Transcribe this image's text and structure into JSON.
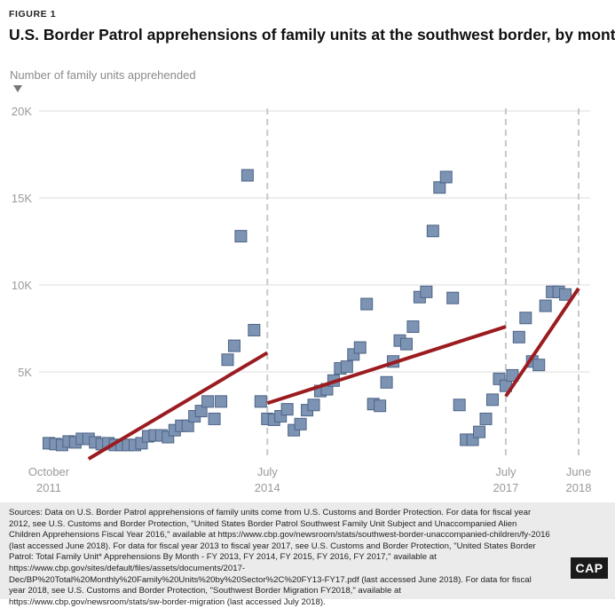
{
  "figure_label": "FIGURE 1",
  "title": "U.S. Border Patrol apprehensions of family units at the southwest border, by month",
  "y_axis_label": "Number of family units apprehended",
  "sources": "Sources: Data on U.S. Border Patrol apprehensions of family units come from U.S. Customs and Border Protection. For data for fiscal year 2012, see U.S. Customs and Border Protection, \"United States Border Patrol Southwest Family Unit Subject and Unaccompanied Alien Children Apprehensions Fiscal Year 2016,\" available at https://www.cbp.gov/newsroom/stats/southwest-border-unaccompanied-children/fy-2016 (last accessed June 2018). For data for fiscal year 2013 to fiscal year 2017, see U.S. Customs and Border Protection, \"United States Border Patrol: Total Family Unit* Apprehensions By Month - FY 2013, FY 2014, FY 2015, FY 2016, FY 2017,\" available at https://www.cbp.gov/sites/default/files/assets/documents/2017-Dec/BP%20Total%20Monthly%20Family%20Units%20by%20Sector%2C%20FY13-FY17.pdf (last accessed June 2018). For data for fiscal year 2018, see U.S. Customs and Border Protection, \"Southwest Border Migration FY2018,\" available at https://www.cbp.gov/newsroom/stats/sw-border-migration (last accessed July 2018).",
  "logo_text": "CAP",
  "colors": {
    "marker_fill": "#7d93b4",
    "marker_stroke": "#4d6485",
    "trend": "#9b1c20",
    "grid": "#dcdcdc",
    "vline": "#c8c8c8",
    "axis_text": "#9a9a9a"
  },
  "chart_data": {
    "type": "scatter",
    "title": "U.S. Border Patrol apprehensions of family units at the southwest border, by month",
    "ylabel": "Number of family units apprehended",
    "xlabel": "",
    "x_range": [
      "2011-10",
      "2018-06"
    ],
    "ylim": [
      0,
      20000
    ],
    "y_ticks": [
      {
        "value": 5000,
        "label": "5K"
      },
      {
        "value": 10000,
        "label": "10K"
      },
      {
        "value": 15000,
        "label": "15K"
      },
      {
        "value": 20000,
        "label": "20K"
      }
    ],
    "x_ticks": [
      {
        "x": "2011-10",
        "line1": "October",
        "line2": "2011",
        "vline": false
      },
      {
        "x": "2014-07",
        "line1": "July",
        "line2": "2014",
        "vline": true
      },
      {
        "x": "2017-07",
        "line1": "July",
        "line2": "2017",
        "vline": true
      },
      {
        "x": "2018-06",
        "line1": "June",
        "line2": "2018",
        "vline": true
      }
    ],
    "grid": "vertical",
    "series": [
      {
        "points": [
          {
            "x": "2011-10",
            "y": 900
          },
          {
            "x": "2011-11",
            "y": 850
          },
          {
            "x": "2011-12",
            "y": 800
          },
          {
            "x": "2012-01",
            "y": 1000
          },
          {
            "x": "2012-02",
            "y": 950
          },
          {
            "x": "2012-03",
            "y": 1150
          },
          {
            "x": "2012-04",
            "y": 1150
          },
          {
            "x": "2012-05",
            "y": 950
          },
          {
            "x": "2012-06",
            "y": 850
          },
          {
            "x": "2012-07",
            "y": 900
          },
          {
            "x": "2012-08",
            "y": 800
          },
          {
            "x": "2012-09",
            "y": 800
          },
          {
            "x": "2012-10",
            "y": 800
          },
          {
            "x": "2012-11",
            "y": 800
          },
          {
            "x": "2012-12",
            "y": 900
          },
          {
            "x": "2013-01",
            "y": 1300
          },
          {
            "x": "2013-02",
            "y": 1350
          },
          {
            "x": "2013-03",
            "y": 1350
          },
          {
            "x": "2013-04",
            "y": 1250
          },
          {
            "x": "2013-05",
            "y": 1650
          },
          {
            "x": "2013-06",
            "y": 1900
          },
          {
            "x": "2013-07",
            "y": 1900
          },
          {
            "x": "2013-08",
            "y": 2450
          },
          {
            "x": "2013-09",
            "y": 2750
          },
          {
            "x": "2013-10",
            "y": 3300
          },
          {
            "x": "2013-11",
            "y": 2300
          },
          {
            "x": "2013-12",
            "y": 3300
          },
          {
            "x": "2014-01",
            "y": 5700
          },
          {
            "x": "2014-02",
            "y": 6500
          },
          {
            "x": "2014-03",
            "y": 12800
          },
          {
            "x": "2014-04",
            "y": 16300
          },
          {
            "x": "2014-05",
            "y": 7400
          },
          {
            "x": "2014-06",
            "y": 3300
          },
          {
            "x": "2014-07",
            "y": 2300
          },
          {
            "x": "2014-08",
            "y": 2250
          },
          {
            "x": "2014-09",
            "y": 2450
          },
          {
            "x": "2014-10",
            "y": 2850
          },
          {
            "x": "2014-11",
            "y": 1650
          },
          {
            "x": "2014-12",
            "y": 2000
          },
          {
            "x": "2015-01",
            "y": 2800
          },
          {
            "x": "2015-02",
            "y": 3100
          },
          {
            "x": "2015-03",
            "y": 3900
          },
          {
            "x": "2015-04",
            "y": 4000
          },
          {
            "x": "2015-05",
            "y": 4500
          },
          {
            "x": "2015-06",
            "y": 5200
          },
          {
            "x": "2015-07",
            "y": 5300
          },
          {
            "x": "2015-08",
            "y": 6000
          },
          {
            "x": "2015-09",
            "y": 6400
          },
          {
            "x": "2015-10",
            "y": 8900
          },
          {
            "x": "2015-11",
            "y": 3150
          },
          {
            "x": "2015-12",
            "y": 3050
          },
          {
            "x": "2016-01",
            "y": 4400
          },
          {
            "x": "2016-02",
            "y": 5600
          },
          {
            "x": "2016-03",
            "y": 6800
          },
          {
            "x": "2016-04",
            "y": 6600
          },
          {
            "x": "2016-05",
            "y": 7600
          },
          {
            "x": "2016-06",
            "y": 9300
          },
          {
            "x": "2016-07",
            "y": 9600
          },
          {
            "x": "2016-08",
            "y": 13100
          },
          {
            "x": "2016-09",
            "y": 15600
          },
          {
            "x": "2016-10",
            "y": 16200
          },
          {
            "x": "2016-11",
            "y": 9250
          },
          {
            "x": "2016-12",
            "y": 3100
          },
          {
            "x": "2017-01",
            "y": 1100
          },
          {
            "x": "2017-02",
            "y": 1100
          },
          {
            "x": "2017-03",
            "y": 1550
          },
          {
            "x": "2017-04",
            "y": 2300
          },
          {
            "x": "2017-05",
            "y": 3400
          },
          {
            "x": "2017-06",
            "y": 4600
          },
          {
            "x": "2017-07",
            "y": 4200
          },
          {
            "x": "2017-08",
            "y": 4800
          },
          {
            "x": "2017-09",
            "y": 7000
          },
          {
            "x": "2017-10",
            "y": 8100
          },
          {
            "x": "2017-11",
            "y": 5600
          },
          {
            "x": "2017-12",
            "y": 5400
          },
          {
            "x": "2018-01",
            "y": 8800
          },
          {
            "x": "2018-02",
            "y": 9600
          },
          {
            "x": "2018-03",
            "y": 9600
          },
          {
            "x": "2018-04",
            "y": 9450
          }
        ]
      }
    ],
    "trend_lines": [
      {
        "from": {
          "x": "2012-04",
          "y": 0
        },
        "to": {
          "x": "2014-07",
          "y": 6100
        }
      },
      {
        "from": {
          "x": "2014-07",
          "y": 3200
        },
        "to": {
          "x": "2017-07",
          "y": 7600
        }
      },
      {
        "from": {
          "x": "2017-07",
          "y": 3600
        },
        "to": {
          "x": "2018-06",
          "y": 9800
        }
      }
    ]
  }
}
